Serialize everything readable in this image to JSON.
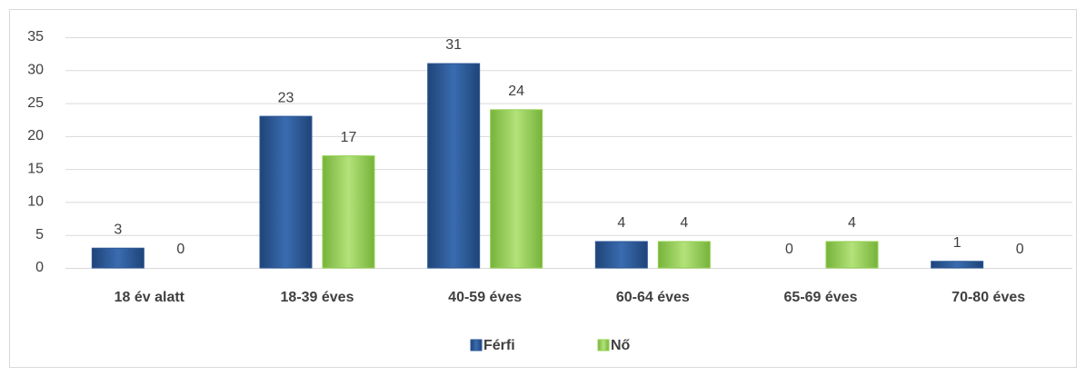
{
  "chart_data": {
    "type": "bar",
    "categories": [
      "18 év alatt",
      "18-39 éves",
      "40-59 éves",
      "60-64 éves",
      "65-69 éves",
      "70-80 éves"
    ],
    "series": [
      {
        "name": "Férfi",
        "color": "#2b5797",
        "values": [
          3,
          23,
          31,
          4,
          0,
          1
        ]
      },
      {
        "name": "Nő",
        "color": "#92d050",
        "values": [
          0,
          17,
          24,
          4,
          4,
          0
        ]
      }
    ],
    "ylim": [
      0,
      35
    ],
    "yticks": [
      0,
      5,
      10,
      15,
      20,
      25,
      30,
      35
    ],
    "grid": true,
    "legend": "bottom"
  }
}
